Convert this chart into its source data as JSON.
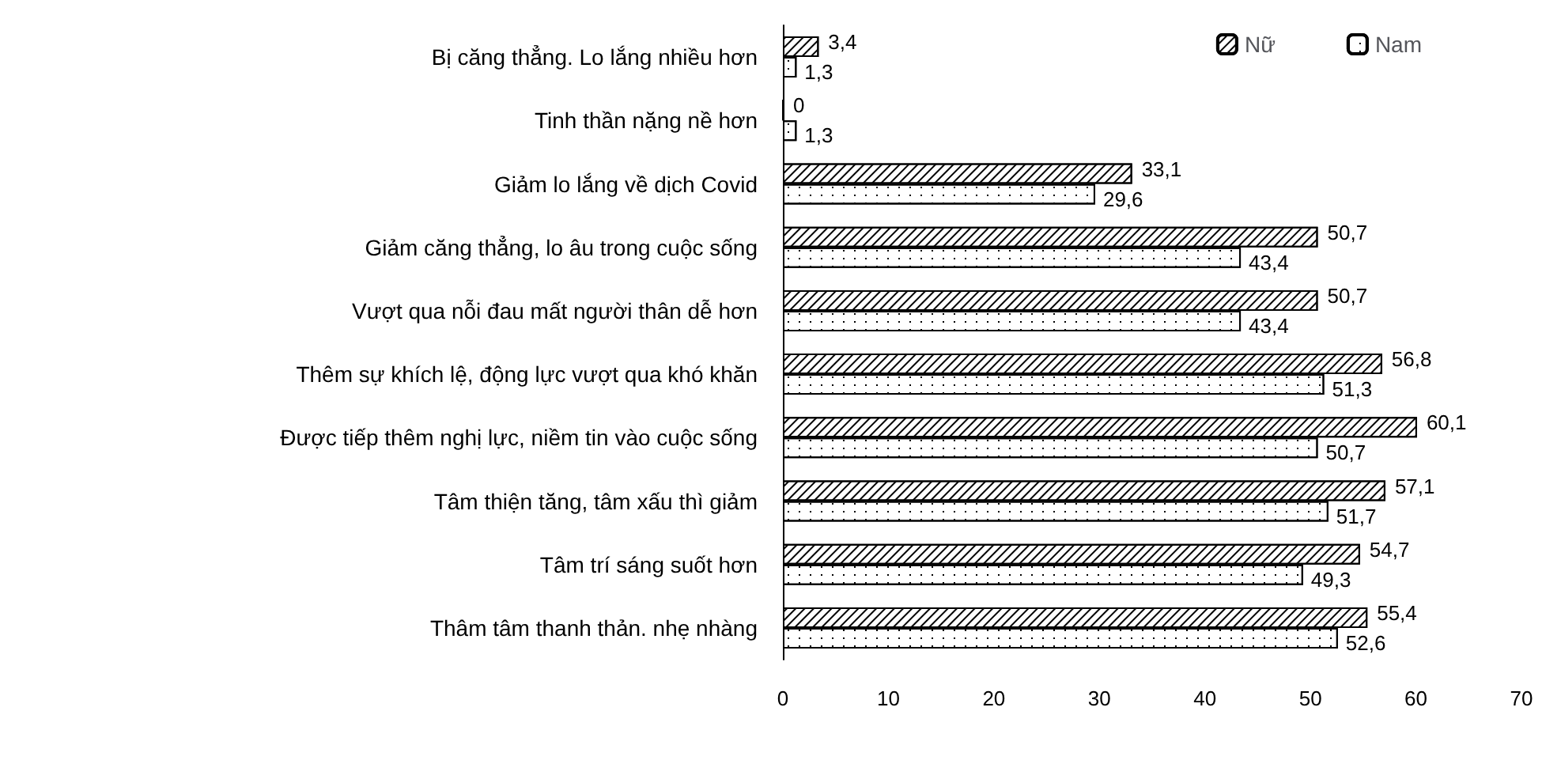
{
  "chart_data": {
    "type": "bar",
    "orientation": "horizontal",
    "categories": [
      "Bị căng thẳng. Lo lắng nhiều hơn",
      "Tinh thần nặng nề hơn",
      "Giảm lo lắng về dịch Covid",
      "Giảm căng thẳng, lo âu trong cuộc sống",
      "Vượt qua nỗi đau mất người thân dễ hơn",
      "Thêm sự khích lệ, động lực vượt qua khó khăn",
      "Được tiếp thêm nghị lực, niềm tin vào cuộc sống",
      "Tâm thiện tăng, tâm xấu thì giảm",
      "Tâm trí sáng suốt hơn",
      "Thâm tâm thanh thản. nhẹ nhàng"
    ],
    "series": [
      {
        "name": "Nữ",
        "color": "#ffffff",
        "values": [
          3.4,
          0,
          33.1,
          50.7,
          50.7,
          56.8,
          60.1,
          57.1,
          54.7,
          55.4
        ],
        "value_labels": [
          "3,4",
          "0",
          "33,1",
          "50,7",
          "50,7",
          "56,8",
          "60,1",
          "57,1",
          "54,7",
          "55,4"
        ]
      },
      {
        "name": "Nam",
        "color": "#ffffff",
        "values": [
          1.3,
          1.3,
          29.6,
          43.4,
          43.4,
          51.3,
          50.7,
          51.7,
          49.3,
          52.6
        ],
        "value_labels": [
          "1,3",
          "1,3",
          "29,6",
          "43,4",
          "43,4",
          "51,3",
          "50,7",
          "51,7",
          "49,3",
          "52,6"
        ]
      }
    ],
    "xlim": [
      0,
      70
    ],
    "xticks": [
      0,
      10,
      20,
      30,
      40,
      50,
      60,
      70
    ],
    "legend": "top right",
    "grid": false
  }
}
